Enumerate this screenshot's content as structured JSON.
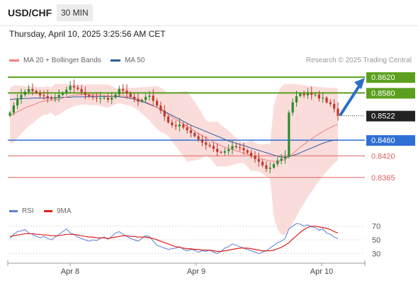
{
  "header": {
    "pair": "USD/CHF",
    "timeframe": "30 MIN"
  },
  "timestamp": "Thursday, April 10, 2025 3:25:56 AM CET",
  "legend": [
    {
      "label": "MA 20 + Bollinger Bands",
      "color": "#f08080"
    },
    {
      "label": "MA 50",
      "color": "#2e5c9e"
    }
  ],
  "credit": "Research © 2025 Trading Central",
  "rsi_legend": [
    {
      "label": "RSI",
      "color": "#5b7fd6"
    },
    {
      "label": "9MA",
      "color": "#e0201b"
    }
  ],
  "colors": {
    "resistance": "#5aa01e",
    "support_main": "#2f6fd6",
    "support": "#e06060",
    "bull_candle": "#2e8b2e",
    "bear_candle": "#c0392b",
    "bollinger": "#f7c6c3",
    "arrow": "#2a6fc9",
    "current": "#222222"
  },
  "chart_data": {
    "type": "candlestick",
    "x_tick_labels": [
      "Apr 8",
      "Apr 9",
      "Apr 10"
    ],
    "y_levels": [
      {
        "value": 0.862,
        "label": "0.8620",
        "kind": "resistance"
      },
      {
        "value": 0.858,
        "label": "0.8580",
        "kind": "resistance"
      },
      {
        "value": 0.8522,
        "label": "0.8522",
        "kind": "current"
      },
      {
        "value": 0.846,
        "label": "0.8460",
        "kind": "pivot"
      },
      {
        "value": 0.842,
        "label": "0.8420",
        "kind": "support"
      },
      {
        "value": 0.8365,
        "label": "0.8365",
        "kind": "support"
      }
    ],
    "ylim": [
      0.8345,
      0.864
    ],
    "close_series": [
      0.853,
      0.8548,
      0.8565,
      0.8575,
      0.8583,
      0.859,
      0.8585,
      0.858,
      0.8574,
      0.8572,
      0.8568,
      0.8565,
      0.8568,
      0.8575,
      0.858,
      0.8588,
      0.8598,
      0.8594,
      0.859,
      0.8582,
      0.8575,
      0.857,
      0.8568,
      0.8566,
      0.8567,
      0.8568,
      0.8563,
      0.8568,
      0.8576,
      0.859,
      0.8586,
      0.8578,
      0.857,
      0.8564,
      0.8558,
      0.8562,
      0.857,
      0.8573,
      0.856,
      0.8548,
      0.8535,
      0.852,
      0.8505,
      0.8498,
      0.8495,
      0.85,
      0.8492,
      0.8485,
      0.8478,
      0.847,
      0.8462,
      0.8454,
      0.8448,
      0.8445,
      0.8438,
      0.843,
      0.8428,
      0.8432,
      0.8437,
      0.8445,
      0.8442,
      0.844,
      0.8434,
      0.8428,
      0.842,
      0.8412,
      0.8405,
      0.8396,
      0.8387,
      0.839,
      0.8399,
      0.8408,
      0.8413,
      0.8418,
      0.853,
      0.8556,
      0.8572,
      0.8578,
      0.8574,
      0.858,
      0.8575,
      0.8576,
      0.8566,
      0.8568,
      0.8556,
      0.8552,
      0.854,
      0.8522
    ],
    "ma20": [
      0.8522,
      0.8527,
      0.8532,
      0.8537,
      0.8542,
      0.8546,
      0.8549,
      0.8553,
      0.8557,
      0.8559,
      0.8561,
      0.8562,
      0.8562,
      0.8564,
      0.8567,
      0.857,
      0.8572,
      0.8574,
      0.8575,
      0.8576,
      0.8576,
      0.8575,
      0.8575,
      0.8575,
      0.8574,
      0.8573,
      0.8572,
      0.8572,
      0.8572,
      0.8573,
      0.8572,
      0.8571,
      0.857,
      0.8568,
      0.8565,
      0.8561,
      0.8557,
      0.8553,
      0.8548,
      0.8543,
      0.8537,
      0.8531,
      0.8525,
      0.8519,
      0.8513,
      0.8507,
      0.8501,
      0.8495,
      0.8489,
      0.8483,
      0.8477,
      0.8471,
      0.8466,
      0.846,
      0.8455,
      0.845,
      0.8446,
      0.8442,
      0.8439,
      0.8436,
      0.8433,
      0.843,
      0.8427,
      0.8424,
      0.8421,
      0.8418,
      0.8415,
      0.8412,
      0.8409,
      0.8407,
      0.8406,
      0.8406,
      0.8408,
      0.8411,
      0.8418,
      0.8426,
      0.8434,
      0.8442,
      0.8449,
      0.8457,
      0.8463,
      0.847,
      0.8476,
      0.8482,
      0.8487,
      0.8492,
      0.8497,
      0.85
    ],
    "ma50": [
      0.8563,
      0.8564,
      0.8565,
      0.8565,
      0.8566,
      0.8566,
      0.8567,
      0.8567,
      0.8567,
      0.8567,
      0.8567,
      0.8568,
      0.8568,
      0.8568,
      0.8569,
      0.8569,
      0.8569,
      0.857,
      0.857,
      0.857,
      0.857,
      0.8571,
      0.8571,
      0.8571,
      0.8571,
      0.8571,
      0.8571,
      0.8571,
      0.8571,
      0.857,
      0.8569,
      0.8568,
      0.8566,
      0.8564,
      0.8561,
      0.8558,
      0.8555,
      0.8551,
      0.8547,
      0.8543,
      0.8538,
      0.8533,
      0.8528,
      0.8523,
      0.8518,
      0.8513,
      0.8508,
      0.8503,
      0.8498,
      0.8494,
      0.849,
      0.8486,
      0.8482,
      0.8478,
      0.8474,
      0.847,
      0.8466,
      0.8462,
      0.8458,
      0.8455,
      0.8452,
      0.8449,
      0.8446,
      0.8443,
      0.844,
      0.8437,
      0.8434,
      0.8431,
      0.8428,
      0.8425,
      0.8422,
      0.8419,
      0.8417,
      0.8416,
      0.8418,
      0.8421,
      0.8424,
      0.8428,
      0.8432,
      0.8436,
      0.844,
      0.8444,
      0.8448,
      0.8452,
      0.8455,
      0.8458,
      0.846,
      0.8461
    ],
    "projection": {
      "from": 0.8522,
      "to": 0.862
    },
    "rsi": {
      "levels": [
        70,
        50,
        30
      ],
      "rsi_values": [
        52,
        58,
        62,
        63,
        65,
        60,
        58,
        55,
        53,
        55,
        52,
        50,
        54,
        58,
        62,
        66,
        60,
        58,
        54,
        52,
        50,
        48,
        50,
        49,
        52,
        54,
        51,
        55,
        60,
        62,
        58,
        55,
        52,
        50,
        48,
        52,
        56,
        55,
        48,
        42,
        40,
        38,
        36,
        37,
        38,
        40,
        36,
        34,
        36,
        35,
        32,
        34,
        33,
        35,
        32,
        30,
        33,
        38,
        40,
        44,
        42,
        40,
        38,
        36,
        34,
        32,
        30,
        32,
        34,
        38,
        42,
        46,
        48,
        52,
        66,
        70,
        74,
        73,
        70,
        72,
        69,
        68,
        64,
        66,
        60,
        58,
        54,
        52
      ],
      "ma_values": [
        55,
        56,
        57,
        58,
        59,
        59,
        59,
        58,
        58,
        57,
        57,
        56,
        56,
        56,
        57,
        58,
        58,
        58,
        57,
        56,
        55,
        54,
        54,
        53,
        53,
        53,
        52,
        53,
        54,
        55,
        56,
        56,
        55,
        55,
        54,
        54,
        54,
        53,
        52,
        50,
        48,
        46,
        44,
        42,
        40,
        39,
        38,
        37,
        37,
        36,
        36,
        35,
        35,
        35,
        34,
        33,
        33,
        34,
        35,
        36,
        37,
        38,
        38,
        38,
        37,
        36,
        35,
        34,
        34,
        34,
        35,
        37,
        39,
        42,
        46,
        51,
        56,
        61,
        65,
        68,
        70,
        70,
        69,
        68,
        67,
        65,
        62,
        60
      ]
    }
  }
}
